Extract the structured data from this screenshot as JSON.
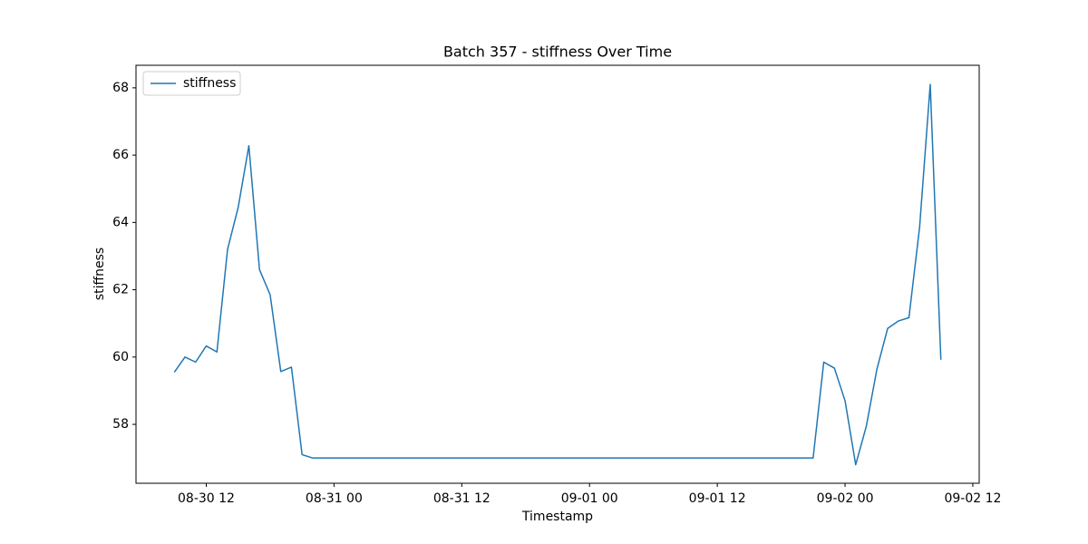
{
  "chart_data": {
    "type": "line",
    "title": "Batch 357 - stiffness Over Time",
    "xlabel": "Timestamp",
    "ylabel": "stiffness",
    "x": [
      "08-30 09",
      "08-30 10",
      "08-30 11",
      "08-30 12",
      "08-30 13",
      "08-30 14",
      "08-30 15",
      "08-30 16",
      "08-30 17",
      "08-30 18",
      "08-30 19",
      "08-30 20",
      "08-30 21",
      "08-30 22",
      "08-30 23",
      "08-31 00",
      "08-31 01",
      "08-31 02",
      "08-31 03",
      "08-31 04",
      "08-31 05",
      "08-31 06",
      "08-31 07",
      "08-31 08",
      "08-31 09",
      "08-31 10",
      "08-31 11",
      "08-31 12",
      "08-31 13",
      "08-31 14",
      "08-31 15",
      "08-31 16",
      "08-31 17",
      "08-31 18",
      "08-31 19",
      "08-31 20",
      "08-31 21",
      "08-31 22",
      "08-31 23",
      "09-01 00",
      "09-01 01",
      "09-01 02",
      "09-01 03",
      "09-01 04",
      "09-01 05",
      "09-01 06",
      "09-01 07",
      "09-01 08",
      "09-01 09",
      "09-01 10",
      "09-01 11",
      "09-01 12",
      "09-01 13",
      "09-01 14",
      "09-01 15",
      "09-01 16",
      "09-01 17",
      "09-01 18",
      "09-01 19",
      "09-01 20",
      "09-01 21",
      "09-01 22",
      "09-01 23",
      "09-02 00",
      "09-02 01",
      "09-02 02",
      "09-02 03",
      "09-02 04",
      "09-02 05",
      "09-02 06",
      "09-02 07",
      "09-02 08",
      "09-02 09"
    ],
    "series": [
      {
        "name": "stiffness",
        "color": "#1f77b4",
        "values": [
          59.55,
          60.0,
          59.85,
          60.33,
          60.15,
          63.2,
          64.45,
          66.28,
          62.6,
          61.85,
          59.57,
          59.7,
          57.1,
          57.0,
          57.0,
          57.0,
          57.0,
          57.0,
          57.0,
          57.0,
          57.0,
          57.0,
          57.0,
          57.0,
          57.0,
          57.0,
          57.0,
          57.0,
          57.0,
          57.0,
          57.0,
          57.0,
          57.0,
          57.0,
          57.0,
          57.0,
          57.0,
          57.0,
          57.0,
          57.0,
          57.0,
          57.0,
          57.0,
          57.0,
          57.0,
          57.0,
          57.0,
          57.0,
          57.0,
          57.0,
          57.0,
          57.0,
          57.0,
          57.0,
          57.0,
          57.0,
          57.0,
          57.0,
          57.0,
          57.0,
          57.0,
          59.85,
          59.67,
          58.7,
          56.8,
          57.95,
          59.65,
          60.85,
          61.07,
          61.17,
          63.85,
          68.1,
          59.92
        ]
      }
    ],
    "xlim": [
      "08-30 05:24",
      "09-02 12:36"
    ],
    "xticks": [
      "08-30 12",
      "08-31 00",
      "08-31 12",
      "09-01 00",
      "09-01 12",
      "09-02 00",
      "09-02 12"
    ],
    "ylim": [
      56.25,
      68.67
    ],
    "yticks": [
      58,
      60,
      62,
      64,
      66,
      68
    ],
    "grid": false,
    "legend": "upper left"
  }
}
